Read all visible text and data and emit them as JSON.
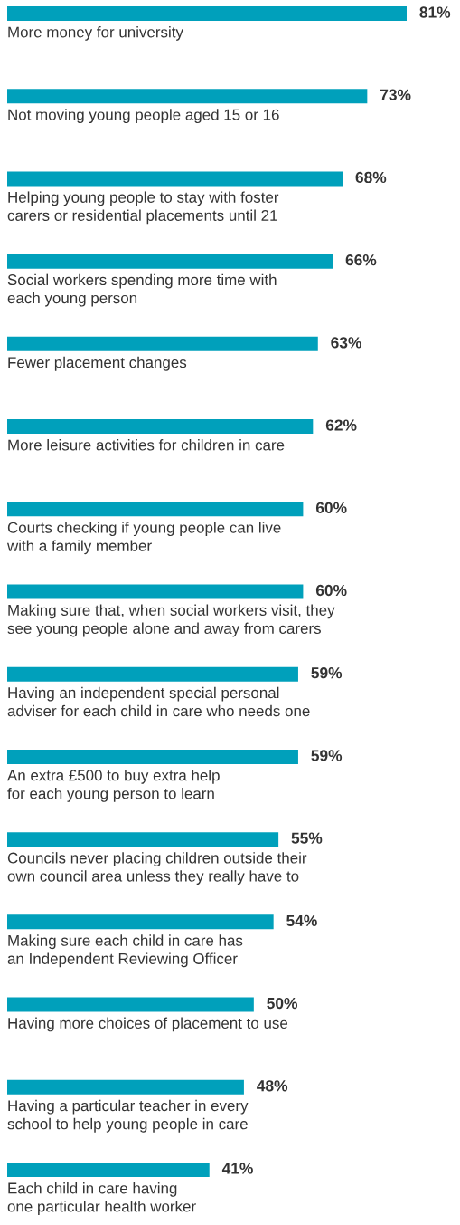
{
  "chart_data": {
    "type": "bar",
    "orientation": "horizontal",
    "categories": [
      "More money for university",
      "Not moving young people aged 15 or 16",
      "Helping young people to stay with foster\ncarers or residential placements until 21",
      "Social workers spending more time with\neach young person",
      "Fewer placement changes",
      "More leisure activities for children in care",
      "Courts checking if young people can live\nwith a family member",
      "Making sure that, when social workers visit, they\nsee young people alone and away from carers",
      "Having an independent special personal\nadviser for each child in care who needs one",
      "An extra £500 to buy extra help\nfor each young person to learn",
      "Councils never placing children outside their\nown council area unless they really have to",
      "Making sure each child in care has\nan Independent Reviewing Officer",
      "Having more choices of placement to use",
      "Having a particular teacher in every\nschool to help young people in care",
      "Each child in care having\none particular health worker"
    ],
    "values": [
      81,
      73,
      68,
      66,
      63,
      62,
      60,
      60,
      59,
      59,
      55,
      54,
      50,
      48,
      41
    ],
    "value_labels": [
      "81%",
      "73%",
      "68%",
      "66%",
      "63%",
      "62%",
      "60%",
      "60%",
      "59%",
      "59%",
      "55%",
      "54%",
      "50%",
      "48%",
      "41%"
    ],
    "color": "#00a0bb"
  }
}
